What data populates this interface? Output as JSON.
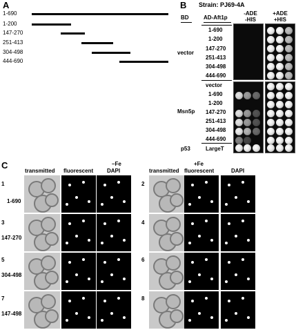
{
  "panel_a": {
    "letter": "A",
    "constructs": [
      "1-690",
      "1-200",
      "147-270",
      "251-413",
      "304-498",
      "444-690"
    ],
    "ranges": [
      [
        1,
        690
      ],
      [
        1,
        200
      ],
      [
        147,
        270
      ],
      [
        251,
        413
      ],
      [
        304,
        498
      ],
      [
        444,
        690
      ]
    ],
    "full_length": 690
  },
  "panel_b": {
    "letter": "B",
    "strain": "Strain: PJ69-4A",
    "col_bd": "BD",
    "col_ad": "AD-Aft1p",
    "col_minus_line1": "-ADE",
    "col_minus_line2": "-HIS",
    "col_plus_line1": "+ADE",
    "col_plus_line2": "+HIS",
    "groups": [
      {
        "bd": "vector",
        "rows": [
          "1-690",
          "1-200",
          "147-270",
          "251-413",
          "304-498",
          "444-690"
        ]
      },
      {
        "bd": "Msn5p",
        "rows": [
          "vector",
          "1-690",
          "1-200",
          "147-270",
          "251-413",
          "304-498",
          "444-690"
        ]
      },
      {
        "bd": "p53",
        "rows": [
          "LargeT"
        ]
      }
    ]
  },
  "panel_c": {
    "letter": "C",
    "minus_fe": "–Fe",
    "plus_fe": "+Fe",
    "col_transmitted": "transmitted",
    "col_fluorescent": "fluorescent",
    "col_dapi": "DAPI",
    "left_rows": [
      {
        "num": "1",
        "label": "1-690"
      },
      {
        "num": "3",
        "label": "147-270"
      },
      {
        "num": "5",
        "label": "304-498"
      },
      {
        "num": "7",
        "label": "147-498"
      }
    ],
    "right_rows": [
      {
        "num": "2"
      },
      {
        "num": "4"
      },
      {
        "num": "6"
      },
      {
        "num": "8"
      }
    ]
  },
  "colors": {
    "foreground": "#000000",
    "background": "#ffffff",
    "plate": "#0b0b0b",
    "colony": "#e8e8e8"
  }
}
